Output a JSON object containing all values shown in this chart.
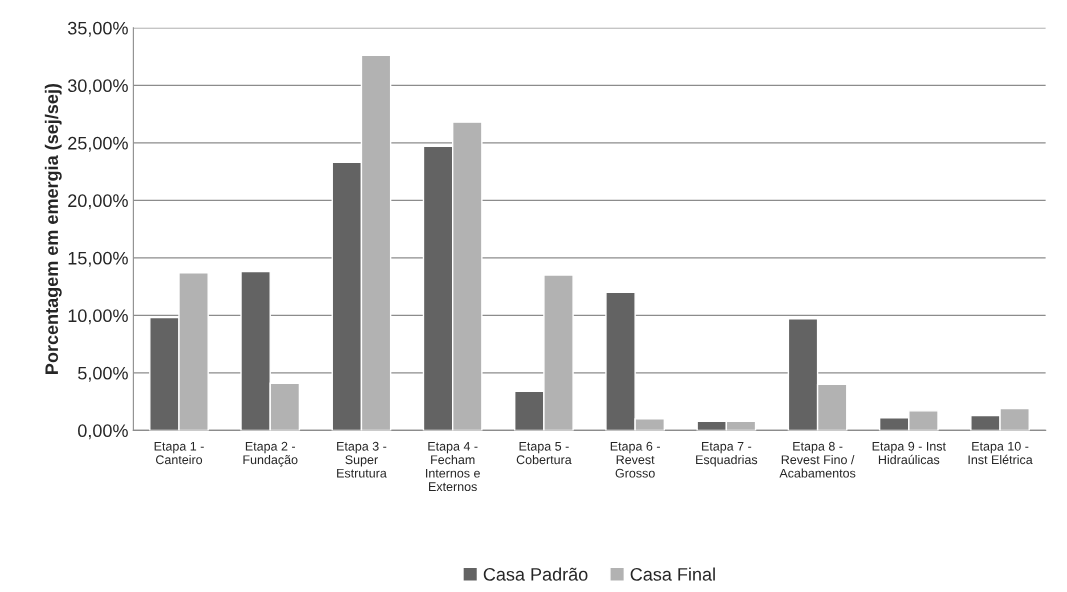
{
  "chart_data": {
    "type": "bar",
    "ylabel": "Porcentagem em emergia (sej/sej)",
    "categories": [
      "Etapa 1 -\nCanteiro",
      "Etapa 2 -\nFundação",
      "Etapa 3 -\nSuper\nEstrutura",
      "Etapa 4 -\nFecham\nInternos e\nExternos",
      "Etapa 5 -\nCobertura",
      "Etapa 6 -\nRevest\nGrosso",
      "Etapa 7 -\nEsquadrias",
      "Etapa 8 -\nRevest Fino /\nAcabamentos",
      "Etapa 9 - Inst\nHidraúlicas",
      "Etapa 10 -\nInst Elétrica"
    ],
    "series": [
      {
        "name": "Casa Padrão",
        "color": "#636363",
        "values": [
          9.8,
          13.8,
          23.3,
          24.7,
          3.4,
          12.0,
          0.8,
          9.7,
          1.1,
          1.3
        ]
      },
      {
        "name": "Casa Final",
        "color": "#b2b2b2",
        "values": [
          13.7,
          4.1,
          32.6,
          26.8,
          13.5,
          1.0,
          0.8,
          4.0,
          1.7,
          1.9
        ]
      }
    ],
    "ylim": [
      0,
      35
    ],
    "yticks": [
      {
        "value": 0,
        "label": "0,00%"
      },
      {
        "value": 5,
        "label": "5,00%"
      },
      {
        "value": 10,
        "label": "10,00%"
      },
      {
        "value": 15,
        "label": "15,00%"
      },
      {
        "value": 20,
        "label": "20,00%"
      },
      {
        "value": 25,
        "label": "25,00%"
      },
      {
        "value": 30,
        "label": "30,00%"
      },
      {
        "value": 35,
        "label": "35,00%"
      }
    ],
    "grid": "y",
    "legend": "bottom"
  }
}
